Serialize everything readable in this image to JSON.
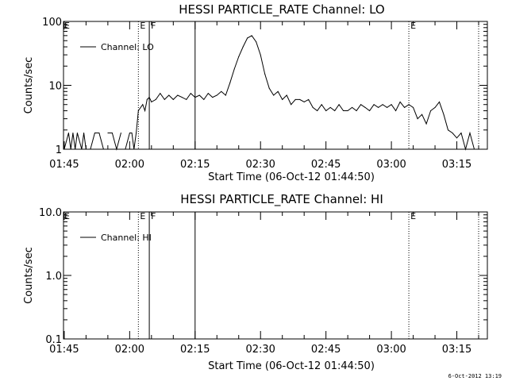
{
  "footer": {
    "timestamp": "6-Oct-2012 13:19"
  },
  "colors": {
    "background": "#ffffff",
    "foreground": "#000000"
  },
  "chart_data": [
    {
      "type": "line",
      "title": "HESSI PARTICLE_RATE Channel: LO",
      "xlabel": "Start Time (06-Oct-12 01:44:50)",
      "ylabel": "Counts/sec",
      "yscale": "log",
      "ylim": [
        1,
        100
      ],
      "y_ticks": [
        "1",
        "10",
        "100"
      ],
      "xlim": [
        "01:44:50",
        "03:22:00"
      ],
      "x_ticks": [
        "01:45",
        "02:00",
        "02:15",
        "02:30",
        "02:45",
        "03:00",
        "03:15"
      ],
      "grid": false,
      "legend": {
        "label": "Channel: LO",
        "placement": "top-left"
      },
      "event_markers": [
        {
          "time": "02:02",
          "style": "dotted",
          "label": "E"
        },
        {
          "time": "02:04:30",
          "style": "solid",
          "label": "F"
        },
        {
          "time": "02:15",
          "style": "solid",
          "label": ""
        },
        {
          "time": "03:04",
          "style": "dotted",
          "label": "E"
        },
        {
          "time": "03:20",
          "style": "dotted",
          "label": ""
        }
      ],
      "margin_labels": [
        {
          "text": "E",
          "side": "left"
        }
      ],
      "series": [
        {
          "x": [
            "01:45",
            "01:46",
            "01:46:30",
            "01:47",
            "01:47:30",
            "01:48",
            "01:49",
            "01:49:30",
            "01:50",
            "01:51",
            "01:52",
            "01:53",
            "01:54",
            "01:55",
            "01:56",
            "01:57",
            "01:58",
            "01:58:30",
            "01:59",
            "02:00",
            "02:00:30",
            "02:01",
            "02:01:30",
            "02:02",
            "02:03",
            "02:03:30",
            "02:04",
            "02:04:30",
            "02:05",
            "02:06",
            "02:07",
            "02:08",
            "02:09",
            "02:10",
            "02:11",
            "02:12",
            "02:13",
            "02:14",
            "02:15",
            "02:16",
            "02:17",
            "02:18",
            "02:19",
            "02:20",
            "02:21",
            "02:22",
            "02:23",
            "02:24",
            "02:25",
            "02:26",
            "02:27",
            "02:28",
            "02:29",
            "02:30",
            "02:31",
            "02:32",
            "02:33",
            "02:34",
            "02:35",
            "02:36",
            "02:37",
            "02:38",
            "02:39",
            "02:40",
            "02:41",
            "02:42",
            "02:43",
            "02:44",
            "02:45",
            "02:46",
            "02:47",
            "02:48",
            "02:49",
            "02:50",
            "02:51",
            "02:52",
            "02:53",
            "02:54",
            "02:55",
            "02:56",
            "02:57",
            "02:58",
            "02:59",
            "03:00",
            "03:01",
            "03:02",
            "03:03",
            "03:04",
            "03:05",
            "03:06",
            "03:07",
            "03:08",
            "03:09",
            "03:10",
            "03:11",
            "03:12",
            "03:13",
            "03:14",
            "03:15",
            "03:16",
            "03:17",
            "03:18",
            "03:19",
            "03:20"
          ],
          "values": [
            1.0,
            1.8,
            1.0,
            1.8,
            1.0,
            1.8,
            1.0,
            1.8,
            1.0,
            1.0,
            1.8,
            1.8,
            1.0,
            1.8,
            1.8,
            1.0,
            1.8,
            1.0,
            1.0,
            1.8,
            1.8,
            1.0,
            1.8,
            4.0,
            5.0,
            4.0,
            6.0,
            6.5,
            5.5,
            6.0,
            7.5,
            6.0,
            7.0,
            6.0,
            7.0,
            6.5,
            6.0,
            7.5,
            6.5,
            7.0,
            6.0,
            7.5,
            6.5,
            7.0,
            8.0,
            7.0,
            11,
            18,
            28,
            40,
            55,
            60,
            48,
            30,
            15,
            9,
            7,
            8,
            6,
            7,
            5,
            6,
            6,
            5.5,
            6,
            4.5,
            4,
            5,
            4,
            4.5,
            4,
            5,
            4,
            4,
            4.5,
            4,
            5,
            4.5,
            4,
            5,
            4.5,
            5,
            4.5,
            5,
            4,
            5.5,
            4.5,
            5,
            4.5,
            3,
            3.5,
            2.5,
            4,
            4.5,
            5.5,
            3.5,
            2,
            1.8,
            1.5,
            1.8,
            1.0,
            1.8,
            1.0,
            1.0
          ],
          "gaps_after_index": [
            8,
            12,
            16
          ]
        }
      ]
    },
    {
      "type": "line",
      "title": "HESSI PARTICLE_RATE Channel: HI",
      "xlabel": "Start Time (06-Oct-12 01:44:50)",
      "ylabel": "Counts/sec",
      "yscale": "log",
      "ylim": [
        0.1,
        10
      ],
      "y_ticks": [
        "0.1",
        "1.0",
        "10.0"
      ],
      "xlim": [
        "01:44:50",
        "03:22:00"
      ],
      "x_ticks": [
        "01:45",
        "02:00",
        "02:15",
        "02:30",
        "02:45",
        "03:00",
        "03:15"
      ],
      "grid": false,
      "legend": {
        "label": "Channel: HI",
        "placement": "top-left"
      },
      "event_markers": [
        {
          "time": "02:02",
          "style": "dotted",
          "label": "E"
        },
        {
          "time": "02:04:30",
          "style": "solid",
          "label": "F"
        },
        {
          "time": "02:15",
          "style": "solid",
          "label": ""
        },
        {
          "time": "03:04",
          "style": "dotted",
          "label": "E"
        },
        {
          "time": "03:20",
          "style": "dotted",
          "label": ""
        }
      ],
      "margin_labels": [
        {
          "text": "E",
          "side": "left"
        }
      ],
      "series": []
    }
  ]
}
